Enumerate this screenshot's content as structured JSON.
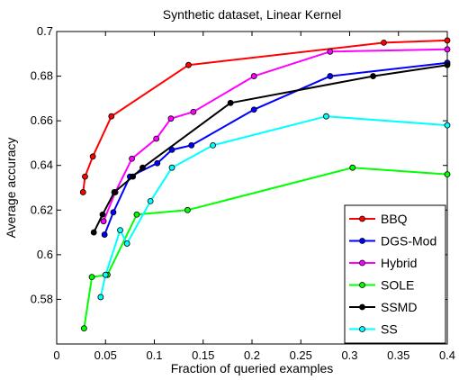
{
  "chart_data": {
    "type": "line",
    "title": "Synthetic dataset, Linear Kernel",
    "xlabel": "Fraction of queried examples",
    "ylabel": "Average accuracy",
    "xlim": [
      0,
      0.4
    ],
    "ylim": [
      0.56,
      0.7
    ],
    "xticks": [
      0,
      0.05,
      0.1,
      0.15,
      0.2,
      0.25,
      0.3,
      0.35,
      0.4
    ],
    "xtick_labels": [
      "0",
      "0.05",
      "0.1",
      "0.15",
      "0.2",
      "0.25",
      "0.3",
      "0.35",
      "0.4"
    ],
    "yticks": [
      0.58,
      0.6,
      0.62,
      0.64,
      0.66,
      0.68,
      0.7
    ],
    "ytick_labels": [
      "0.58",
      "0.6",
      "0.62",
      "0.64",
      "0.66",
      "0.68",
      "0.7"
    ],
    "grid": false,
    "legend_position": "bottom-right",
    "series": [
      {
        "name": "BBQ",
        "color": "#ff0000",
        "x": [
          0.027,
          0.029,
          0.037,
          0.056,
          0.135,
          0.335,
          0.4
        ],
        "y": [
          0.628,
          0.635,
          0.644,
          0.662,
          0.685,
          0.695,
          0.696
        ]
      },
      {
        "name": "DGS-Mod",
        "color": "#0000ff",
        "x": [
          0.049,
          0.058,
          0.075,
          0.103,
          0.118,
          0.138,
          0.202,
          0.28,
          0.4
        ],
        "y": [
          0.609,
          0.619,
          0.635,
          0.641,
          0.647,
          0.649,
          0.665,
          0.68,
          0.686
        ]
      },
      {
        "name": "Hybrid",
        "color": "#ff00ff",
        "x": [
          0.048,
          0.06,
          0.077,
          0.102,
          0.117,
          0.14,
          0.202,
          0.28,
          0.4
        ],
        "y": [
          0.615,
          0.628,
          0.643,
          0.652,
          0.661,
          0.664,
          0.68,
          0.691,
          0.692
        ]
      },
      {
        "name": "SOLE",
        "color": "#00ff00",
        "x": [
          0.028,
          0.036,
          0.052,
          0.082,
          0.134,
          0.303,
          0.4
        ],
        "y": [
          0.567,
          0.59,
          0.591,
          0.618,
          0.62,
          0.639,
          0.636
        ]
      },
      {
        "name": "SSMD",
        "color": "#000000",
        "x": [
          0.038,
          0.047,
          0.059,
          0.078,
          0.088,
          0.178,
          0.324,
          0.4
        ],
        "y": [
          0.61,
          0.618,
          0.628,
          0.635,
          0.639,
          0.668,
          0.68,
          0.685
        ]
      },
      {
        "name": "SS",
        "color": "#00ffff",
        "x": [
          0.045,
          0.05,
          0.065,
          0.072,
          0.096,
          0.118,
          0.16,
          0.276,
          0.4
        ],
        "y": [
          0.581,
          0.591,
          0.611,
          0.605,
          0.624,
          0.639,
          0.649,
          0.662,
          0.658
        ]
      }
    ]
  }
}
